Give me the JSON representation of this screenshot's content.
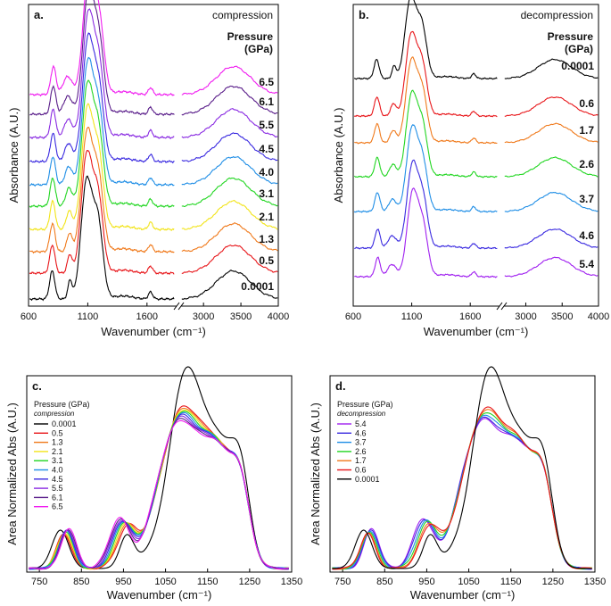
{
  "chart_data": [
    {
      "type": "line",
      "panel": "a.",
      "title": "compression",
      "xlabel": "Wavenumber (cm⁻¹)",
      "ylabel": "Absorbance (A.U.)",
      "xticks_left": [
        "600",
        "1100",
        "1600"
      ],
      "xticks_right": [
        "3000",
        "3500",
        "4000"
      ],
      "legend_title_1": "Pressure",
      "legend_title_2": "(GPa)",
      "series": [
        {
          "name": "0.0001",
          "color": "#000000"
        },
        {
          "name": "0.5",
          "color": "#e8161a"
        },
        {
          "name": "1.3",
          "color": "#f07a1c"
        },
        {
          "name": "2.1",
          "color": "#f2e41a"
        },
        {
          "name": "3.1",
          "color": "#22d622"
        },
        {
          "name": "4.0",
          "color": "#1f8ee6"
        },
        {
          "name": "4.5",
          "color": "#3a2ae0"
        },
        {
          "name": "5.5",
          "color": "#8a2be2"
        },
        {
          "name": "6.1",
          "color": "#5a1e8a"
        },
        {
          "name": "6.5",
          "color": "#f01ef0"
        }
      ]
    },
    {
      "type": "line",
      "panel": "b.",
      "title": "decompression",
      "xlabel": "Wavenumber (cm⁻¹)",
      "ylabel": "Absorbance (A.U.)",
      "xticks_left": [
        "600",
        "1100",
        "1600"
      ],
      "xticks_right": [
        "3000",
        "3500",
        "4000"
      ],
      "legend_title_1": "Pressure",
      "legend_title_2": "(GPa)",
      "series": [
        {
          "name": "0.0001",
          "color": "#000000"
        },
        {
          "name": "0.6",
          "color": "#e8161a"
        },
        {
          "name": "1.7",
          "color": "#f07a1c"
        },
        {
          "name": "2.6",
          "color": "#22d622"
        },
        {
          "name": "3.7",
          "color": "#1f8ee6"
        },
        {
          "name": "4.6",
          "color": "#3a2ae0"
        },
        {
          "name": "5.4",
          "color": "#a020f0"
        }
      ]
    },
    {
      "type": "line",
      "panel": "c.",
      "xlabel": "Wavenumber (cm⁻¹)",
      "ylabel": "Area Normalized Abs (A.U.)",
      "xticks": [
        "750",
        "850",
        "950",
        "1050",
        "1150",
        "1250",
        "1350"
      ],
      "xlim": [
        720,
        1350
      ],
      "legend_title": "Pressure (GPa)",
      "legend_subtitle": "compression",
      "series": [
        {
          "name": "0.0001",
          "color": "#000000"
        },
        {
          "name": "0.5",
          "color": "#e8161a"
        },
        {
          "name": "1.3",
          "color": "#f07a1c"
        },
        {
          "name": "2.1",
          "color": "#f2e41a"
        },
        {
          "name": "3.1",
          "color": "#22d622"
        },
        {
          "name": "4.0",
          "color": "#1f8ee6"
        },
        {
          "name": "4.5",
          "color": "#3a2ae0"
        },
        {
          "name": "5.5",
          "color": "#8a2be2"
        },
        {
          "name": "6.1",
          "color": "#5a1e8a"
        },
        {
          "name": "6.5",
          "color": "#f01ef0"
        }
      ]
    },
    {
      "type": "line",
      "panel": "d.",
      "xlabel": "Wavenumber (cm⁻¹)",
      "ylabel": "Area Normalized Abs (A.U.)",
      "xticks": [
        "750",
        "850",
        "950",
        "1050",
        "1150",
        "1250",
        "1350"
      ],
      "xlim": [
        720,
        1350
      ],
      "legend_title": "Pressure (GPa)",
      "legend_subtitle": "decompression",
      "series": [
        {
          "name": "5.4",
          "color": "#a020f0"
        },
        {
          "name": "4.6",
          "color": "#3a2ae0"
        },
        {
          "name": "3.7",
          "color": "#1f8ee6"
        },
        {
          "name": "2.6",
          "color": "#22d622"
        },
        {
          "name": "1.7",
          "color": "#f07a1c"
        },
        {
          "name": "0.6",
          "color": "#e8161a"
        },
        {
          "name": "0.0001",
          "color": "#000000"
        }
      ]
    }
  ]
}
